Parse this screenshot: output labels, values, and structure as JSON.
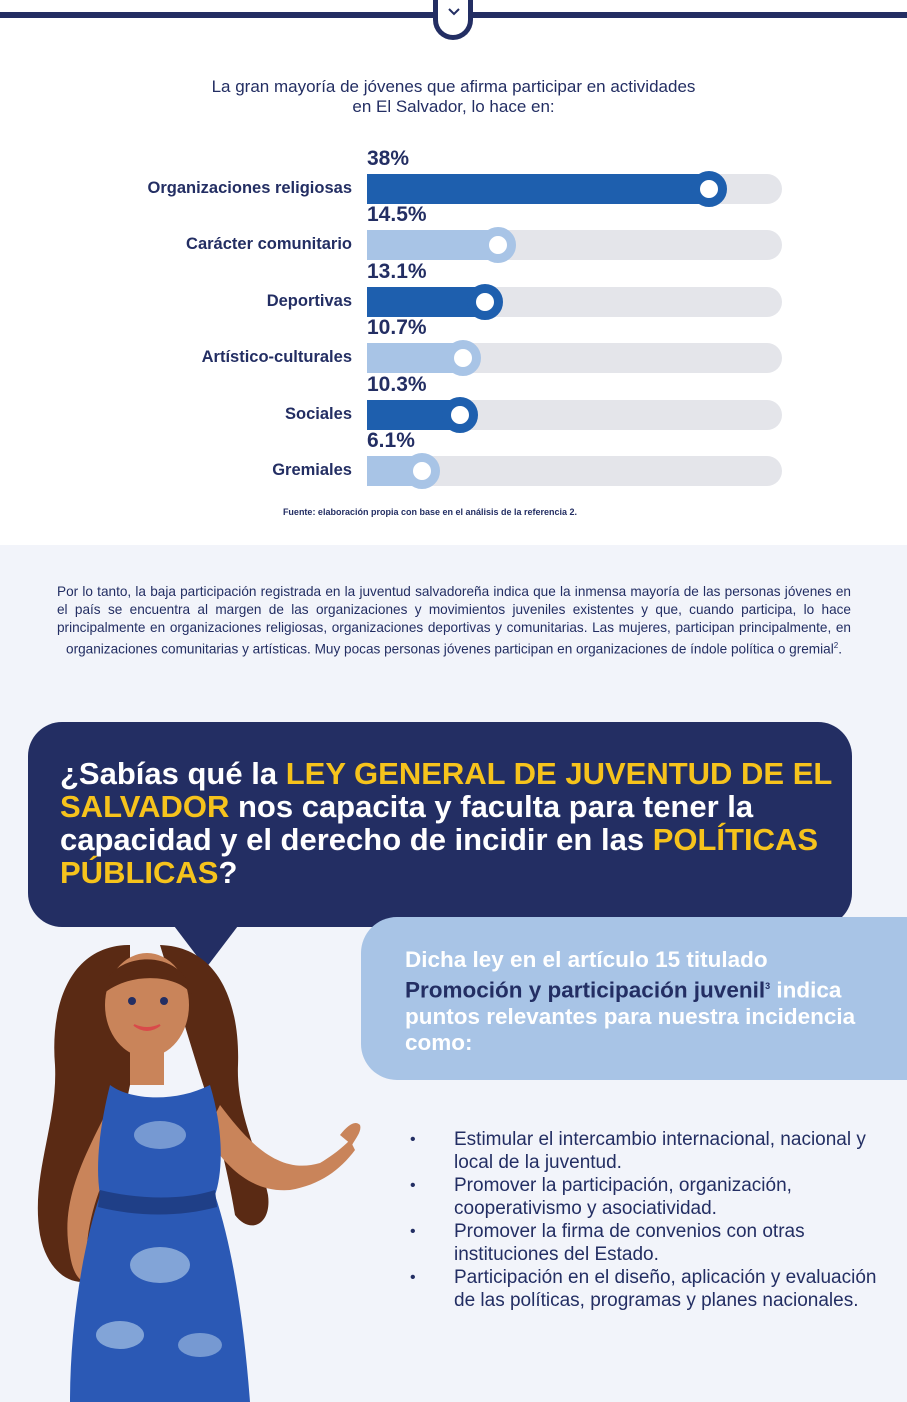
{
  "intro_text": "La gran mayoría de jóvenes que afirma participar en actividades en El Salvador, lo hace en:",
  "chart_data": {
    "type": "bar",
    "orientation": "horizontal",
    "categories": [
      "Organizaciones religiosas",
      "Carácter comunitario",
      "Deportivas",
      "Artístico-culturales",
      "Sociales",
      "Gremiales"
    ],
    "values": [
      38,
      14.5,
      13.1,
      10.7,
      10.3,
      6.1
    ],
    "value_labels": [
      "38%",
      "14.5%",
      "13.1%",
      "10.7%",
      "10.3%",
      "6.1%"
    ],
    "unit": "%",
    "colors": [
      "#1e5fae",
      "#a8c4e6",
      "#1e5fae",
      "#a8c4e6",
      "#1e5fae",
      "#a8c4e6"
    ],
    "track_color": "#e4e5ea"
  },
  "source_note": "Fuente: elaboración propia con base en el análisis de la referencia 2.",
  "paragraph": "Por lo tanto, la baja participación registrada en la juventud salvadoreña indica que la inmensa mayoría de las personas jóvenes en el país se encuentra al margen de las organizaciones y movimientos juveniles existentes y que, cuando participa, lo hace principalmente en organizaciones religiosas, organizaciones deportivas y comunitarias. Las mujeres, participan principalmente, en organizaciones comunitarias y artísticas. Muy pocas personas jóvenes participan en organizaciones de índole política o gremial",
  "paragraph_ref": "2",
  "paragraph_end": ".",
  "question": {
    "part1": "¿Sabías qué la ",
    "highlight1": "LEY GENERAL DE JUVENTUD DE EL SALVADOR",
    "part2": " nos capacita y faculta para tener la capacidad y el derecho de incidir en las ",
    "highlight2": "POLÍTICAS PÚBLICAS",
    "part3": "?"
  },
  "law_text": {
    "part1": "Dicha ley en el artículo 15 titulado ",
    "title": "Promoción y participación juvenil",
    "ref": "3",
    "part2": " indica puntos relevantes para nuestra incidencia como:"
  },
  "bullets": [
    "Estimular el intercambio internacional, nacional y local de la juventud.",
    "Promover la participación, organización, cooperativismo y asociatividad.",
    "Promover la firma de convenios con otras instituciones del Estado.",
    "Participación en el diseño, aplicación y evaluación de las políticas, programas y planes nacionales."
  ],
  "bullet_marker": "•",
  "icons": {
    "header": "chevron-down-icon",
    "illustration": "woman-illustration"
  },
  "colors": {
    "navy": "#232e63",
    "blue": "#1e5fae",
    "light_blue": "#a8c4e6",
    "yellow": "#f6c31c",
    "background": "#f2f4fa"
  }
}
